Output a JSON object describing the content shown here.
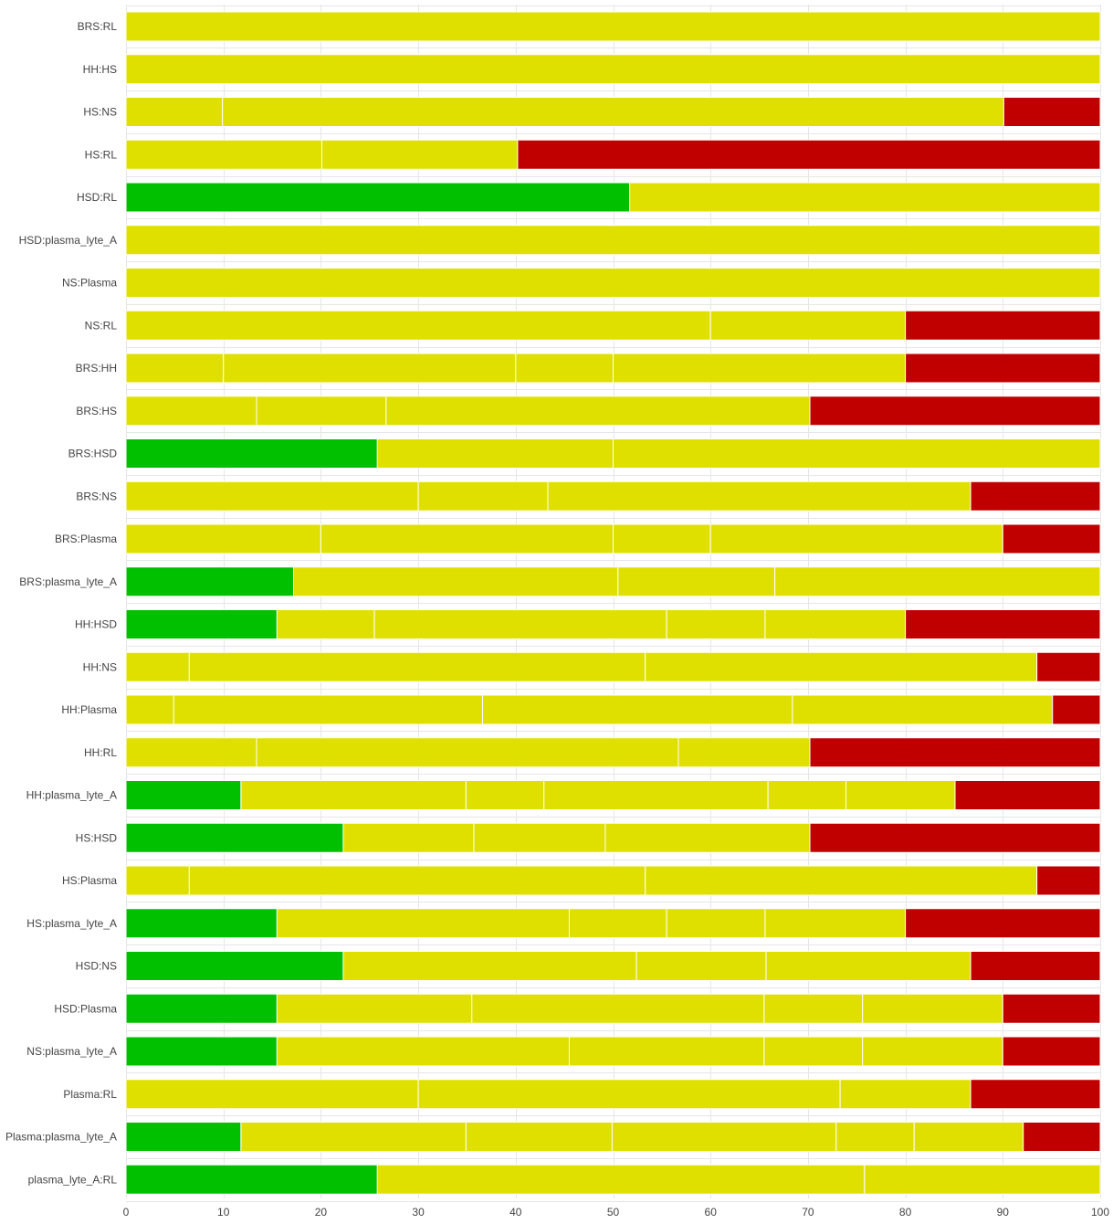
{
  "chart_data": {
    "type": "bar",
    "orientation": "horizontal",
    "stacked": true,
    "title": "",
    "xlabel": "",
    "ylabel": "",
    "xlim": [
      0,
      100
    ],
    "xticks": [
      0,
      10,
      20,
      30,
      40,
      50,
      60,
      70,
      80,
      90,
      100
    ],
    "grid": true,
    "legend": "none",
    "colors": {
      "green": "#00c000",
      "yellow": "#e0e000",
      "red": "#c00000"
    },
    "categories": [
      "BRS:RL",
      "HH:HS",
      "HS:NS",
      "HS:RL",
      "HSD:RL",
      "HSD:plasma_lyte_A",
      "NS:Plasma",
      "NS:RL",
      "BRS:HH",
      "BRS:HS",
      "BRS:HSD",
      "BRS:NS",
      "BRS:Plasma",
      "BRS:plasma_lyte_A",
      "HH:HSD",
      "HH:NS",
      "HH:Plasma",
      "HH:RL",
      "HH:plasma_lyte_A",
      "HS:HSD",
      "HS:Plasma",
      "HS:plasma_lyte_A",
      "HSD:NS",
      "HSD:Plasma",
      "NS:plasma_lyte_A",
      "Plasma:RL",
      "Plasma:plasma_lyte_A",
      "plasma_lyte_A:RL"
    ],
    "bars": [
      {
        "category": "BRS:RL",
        "segments": [
          {
            "color": "yellow",
            "value": 100
          }
        ]
      },
      {
        "category": "HH:HS",
        "segments": [
          {
            "color": "yellow",
            "value": 100
          }
        ]
      },
      {
        "category": "HS:NS",
        "segments": [
          {
            "color": "yellow",
            "value": 9.9
          },
          {
            "color": "yellow",
            "value": 80.2
          },
          {
            "color": "red",
            "value": 9.9
          }
        ]
      },
      {
        "category": "HS:RL",
        "segments": [
          {
            "color": "yellow",
            "value": 20.1
          },
          {
            "color": "yellow",
            "value": 20.1
          },
          {
            "color": "red",
            "value": 59.8
          }
        ]
      },
      {
        "category": "HSD:RL",
        "segments": [
          {
            "color": "green",
            "value": 51.7
          },
          {
            "color": "yellow",
            "value": 48.3
          }
        ]
      },
      {
        "category": "HSD:plasma_lyte_A",
        "segments": [
          {
            "color": "yellow",
            "value": 100
          }
        ]
      },
      {
        "category": "NS:Plasma",
        "segments": [
          {
            "color": "yellow",
            "value": 100
          }
        ]
      },
      {
        "category": "NS:RL",
        "segments": [
          {
            "color": "yellow",
            "value": 60
          },
          {
            "color": "yellow",
            "value": 20
          },
          {
            "color": "red",
            "value": 20
          }
        ]
      },
      {
        "category": "BRS:HH",
        "segments": [
          {
            "color": "yellow",
            "value": 10
          },
          {
            "color": "yellow",
            "value": 30
          },
          {
            "color": "yellow",
            "value": 10
          },
          {
            "color": "yellow",
            "value": 30
          },
          {
            "color": "red",
            "value": 20
          }
        ]
      },
      {
        "category": "BRS:HS",
        "segments": [
          {
            "color": "yellow",
            "value": 13.4
          },
          {
            "color": "yellow",
            "value": 13.3
          },
          {
            "color": "yellow",
            "value": 43.5
          },
          {
            "color": "red",
            "value": 29.8
          }
        ]
      },
      {
        "category": "BRS:HSD",
        "segments": [
          {
            "color": "green",
            "value": 25.8
          },
          {
            "color": "yellow",
            "value": 24.2
          },
          {
            "color": "yellow",
            "value": 50
          }
        ]
      },
      {
        "category": "BRS:NS",
        "segments": [
          {
            "color": "yellow",
            "value": 30
          },
          {
            "color": "yellow",
            "value": 13.3
          },
          {
            "color": "yellow",
            "value": 43.4
          },
          {
            "color": "red",
            "value": 13.3
          }
        ]
      },
      {
        "category": "BRS:Plasma",
        "segments": [
          {
            "color": "yellow",
            "value": 20
          },
          {
            "color": "yellow",
            "value": 30
          },
          {
            "color": "yellow",
            "value": 10
          },
          {
            "color": "yellow",
            "value": 30
          },
          {
            "color": "red",
            "value": 10
          }
        ]
      },
      {
        "category": "BRS:plasma_lyte_A",
        "segments": [
          {
            "color": "green",
            "value": 17.2
          },
          {
            "color": "yellow",
            "value": 33.3
          },
          {
            "color": "yellow",
            "value": 16.1
          },
          {
            "color": "yellow",
            "value": 33.4
          }
        ]
      },
      {
        "category": "HH:HSD",
        "segments": [
          {
            "color": "green",
            "value": 15.5
          },
          {
            "color": "yellow",
            "value": 10
          },
          {
            "color": "yellow",
            "value": 30
          },
          {
            "color": "yellow",
            "value": 10.1
          },
          {
            "color": "yellow",
            "value": 14.4
          },
          {
            "color": "red",
            "value": 20
          }
        ]
      },
      {
        "category": "HH:NS",
        "segments": [
          {
            "color": "yellow",
            "value": 6.5
          },
          {
            "color": "yellow",
            "value": 46.8
          },
          {
            "color": "yellow",
            "value": 40.2
          },
          {
            "color": "red",
            "value": 6.5
          }
        ]
      },
      {
        "category": "HH:Plasma",
        "segments": [
          {
            "color": "yellow",
            "value": 4.9
          },
          {
            "color": "yellow",
            "value": 31.7
          },
          {
            "color": "yellow",
            "value": 31.8
          },
          {
            "color": "yellow",
            "value": 26.7
          },
          {
            "color": "red",
            "value": 4.9
          }
        ]
      },
      {
        "category": "HH:RL",
        "segments": [
          {
            "color": "yellow",
            "value": 13.4
          },
          {
            "color": "yellow",
            "value": 43.3
          },
          {
            "color": "yellow",
            "value": 13.5
          },
          {
            "color": "red",
            "value": 29.8
          }
        ]
      },
      {
        "category": "HH:plasma_lyte_A",
        "segments": [
          {
            "color": "green",
            "value": 11.8
          },
          {
            "color": "yellow",
            "value": 23.1
          },
          {
            "color": "yellow",
            "value": 8
          },
          {
            "color": "yellow",
            "value": 23
          },
          {
            "color": "yellow",
            "value": 8
          },
          {
            "color": "yellow",
            "value": 11.2
          },
          {
            "color": "red",
            "value": 14.9
          }
        ]
      },
      {
        "category": "HS:HSD",
        "segments": [
          {
            "color": "green",
            "value": 22.3
          },
          {
            "color": "yellow",
            "value": 13.4
          },
          {
            "color": "yellow",
            "value": 13.5
          },
          {
            "color": "yellow",
            "value": 21
          },
          {
            "color": "red",
            "value": 29.8
          }
        ]
      },
      {
        "category": "HS:Plasma",
        "segments": [
          {
            "color": "yellow",
            "value": 6.5
          },
          {
            "color": "yellow",
            "value": 46.8
          },
          {
            "color": "yellow",
            "value": 40.2
          },
          {
            "color": "red",
            "value": 6.5
          }
        ]
      },
      {
        "category": "HS:plasma_lyte_A",
        "segments": [
          {
            "color": "green",
            "value": 15.5
          },
          {
            "color": "yellow",
            "value": 30
          },
          {
            "color": "yellow",
            "value": 10
          },
          {
            "color": "yellow",
            "value": 10.1
          },
          {
            "color": "yellow",
            "value": 14.4
          },
          {
            "color": "red",
            "value": 20
          }
        ]
      },
      {
        "category": "HSD:NS",
        "segments": [
          {
            "color": "green",
            "value": 22.3
          },
          {
            "color": "yellow",
            "value": 30.1
          },
          {
            "color": "yellow",
            "value": 13.3
          },
          {
            "color": "yellow",
            "value": 21
          },
          {
            "color": "red",
            "value": 13.3
          }
        ]
      },
      {
        "category": "HSD:Plasma",
        "segments": [
          {
            "color": "green",
            "value": 15.5
          },
          {
            "color": "yellow",
            "value": 20
          },
          {
            "color": "yellow",
            "value": 30
          },
          {
            "color": "yellow",
            "value": 10.1
          },
          {
            "color": "yellow",
            "value": 14.4
          },
          {
            "color": "red",
            "value": 10
          }
        ]
      },
      {
        "category": "NS:plasma_lyte_A",
        "segments": [
          {
            "color": "green",
            "value": 15.5
          },
          {
            "color": "yellow",
            "value": 30
          },
          {
            "color": "yellow",
            "value": 20
          },
          {
            "color": "yellow",
            "value": 10.1
          },
          {
            "color": "yellow",
            "value": 14.4
          },
          {
            "color": "red",
            "value": 10
          }
        ]
      },
      {
        "category": "Plasma:RL",
        "segments": [
          {
            "color": "yellow",
            "value": 30
          },
          {
            "color": "yellow",
            "value": 43.3
          },
          {
            "color": "yellow",
            "value": 13.4
          },
          {
            "color": "red",
            "value": 13.3
          }
        ]
      },
      {
        "category": "Plasma:plasma_lyte_A",
        "segments": [
          {
            "color": "green",
            "value": 11.8
          },
          {
            "color": "yellow",
            "value": 23.1
          },
          {
            "color": "yellow",
            "value": 15
          },
          {
            "color": "yellow",
            "value": 23
          },
          {
            "color": "yellow",
            "value": 8
          },
          {
            "color": "yellow",
            "value": 11.2
          },
          {
            "color": "red",
            "value": 7.9
          }
        ]
      },
      {
        "category": "plasma_lyte_A:RL",
        "segments": [
          {
            "color": "green",
            "value": 25.8
          },
          {
            "color": "yellow",
            "value": 50
          },
          {
            "color": "yellow",
            "value": 24.2
          }
        ]
      }
    ]
  }
}
